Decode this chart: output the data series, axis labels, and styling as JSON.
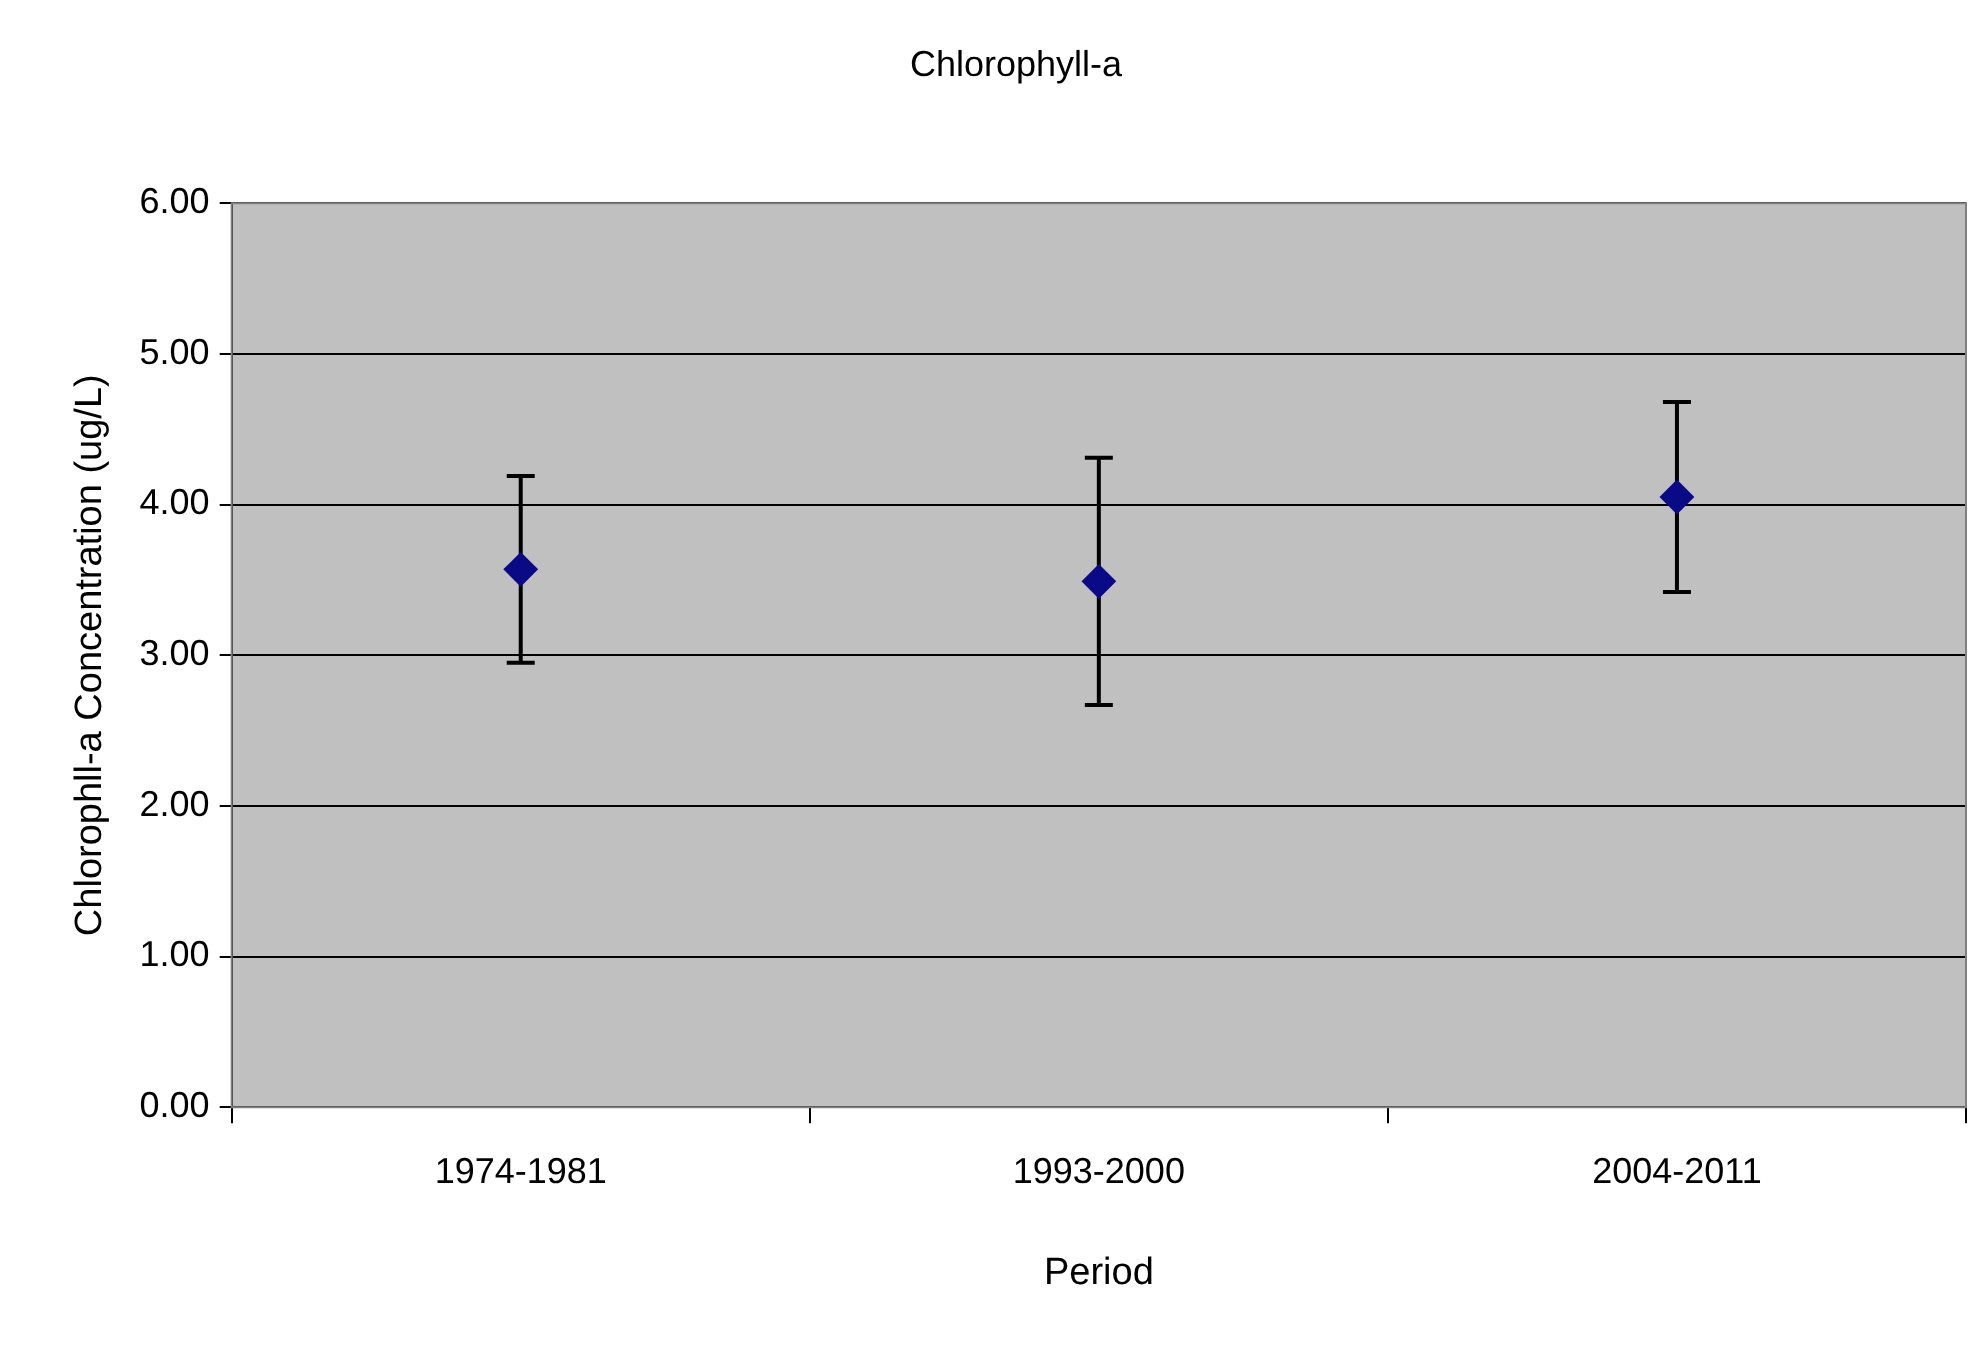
{
  "chart_data": {
    "type": "scatter",
    "title": "Chlorophyll-a",
    "xlabel": "Period",
    "ylabel": "Chlorophll-a Concentration (ug/L)",
    "categories": [
      "1974-1981",
      "1993-2000",
      "2004-2011"
    ],
    "series": [
      {
        "color": "#0a0a86",
        "values": [
          3.57,
          3.49,
          4.05
        ],
        "errors": [
          0.62,
          0.82,
          0.63
        ]
      }
    ],
    "ylim": [
      0,
      6
    ],
    "yticks": [
      {
        "value": 0,
        "label": "0.00"
      },
      {
        "value": 1,
        "label": "1.00"
      },
      {
        "value": 2,
        "label": "2.00"
      },
      {
        "value": 3,
        "label": "3.00"
      },
      {
        "value": 4,
        "label": "4.00"
      },
      {
        "value": 5,
        "label": "5.00"
      },
      {
        "value": 6,
        "label": "6.00"
      }
    ],
    "grid": "y",
    "legend": false,
    "marker": "diamond"
  }
}
